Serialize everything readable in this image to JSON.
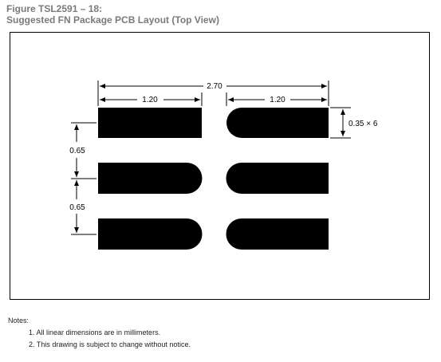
{
  "figure": {
    "number": "Figure TSL2591 – 18:",
    "title": "Suggested FN Package PCB Layout (Top View)"
  },
  "dimensions": {
    "overall_width": "2.70",
    "pad_length_left": "1.20",
    "pad_length_right": "1.20",
    "pad_width": "0.35 × 6",
    "pitch_1": "0.65",
    "pitch_2": "0.65"
  },
  "notes": {
    "heading": "Notes:",
    "items": [
      "1.  All linear dimensions are in millimeters.",
      "2.  This drawing is subject to change without notice."
    ]
  },
  "colors": {
    "pad": "#000000",
    "line": "#000000",
    "title": "#7a7a7a"
  }
}
